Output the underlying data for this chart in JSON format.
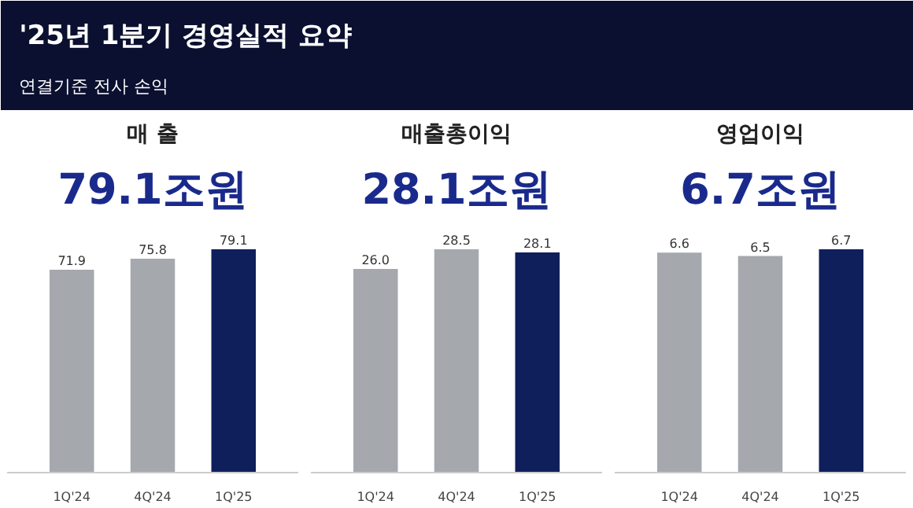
{
  "chart_data": [
    {
      "type": "other",
      "title": "'25년 1분기 경영실적 요약",
      "subtitle": "연결기준 전사 손익"
    },
    {
      "type": "bar",
      "title": "매 출",
      "subtitle": "79.1조원",
      "categories": [
        "1Q'24",
        "4Q'24",
        "1Q'25"
      ],
      "values": [
        71.9,
        75.8,
        79.1
      ],
      "value_labels": [
        "71.9",
        "75.8",
        "79.1"
      ],
      "colors": [
        "#a5a9ae",
        "#a5a9ae",
        "#0f1f5c"
      ],
      "grid": false
    },
    {
      "type": "bar",
      "title": "매출총이익",
      "subtitle": "28.1조원",
      "categories": [
        "1Q'24",
        "4Q'24",
        "1Q'25"
      ],
      "values": [
        26.0,
        28.5,
        28.1
      ],
      "value_labels": [
        "26.0",
        "28.5",
        "28.1"
      ],
      "colors": [
        "#a5a9ae",
        "#a5a9ae",
        "#0f1f5c"
      ],
      "grid": false
    },
    {
      "type": "bar",
      "title": "영업이익",
      "subtitle": "6.7조원",
      "categories": [
        "1Q'24",
        "4Q'24",
        "1Q'25"
      ],
      "values": [
        6.6,
        6.5,
        6.7
      ],
      "value_labels": [
        "6.6",
        "6.5",
        "6.7"
      ],
      "colors": [
        "#a5a9ae",
        "#a5a9ae",
        "#0f1f5c"
      ],
      "grid": false
    }
  ]
}
